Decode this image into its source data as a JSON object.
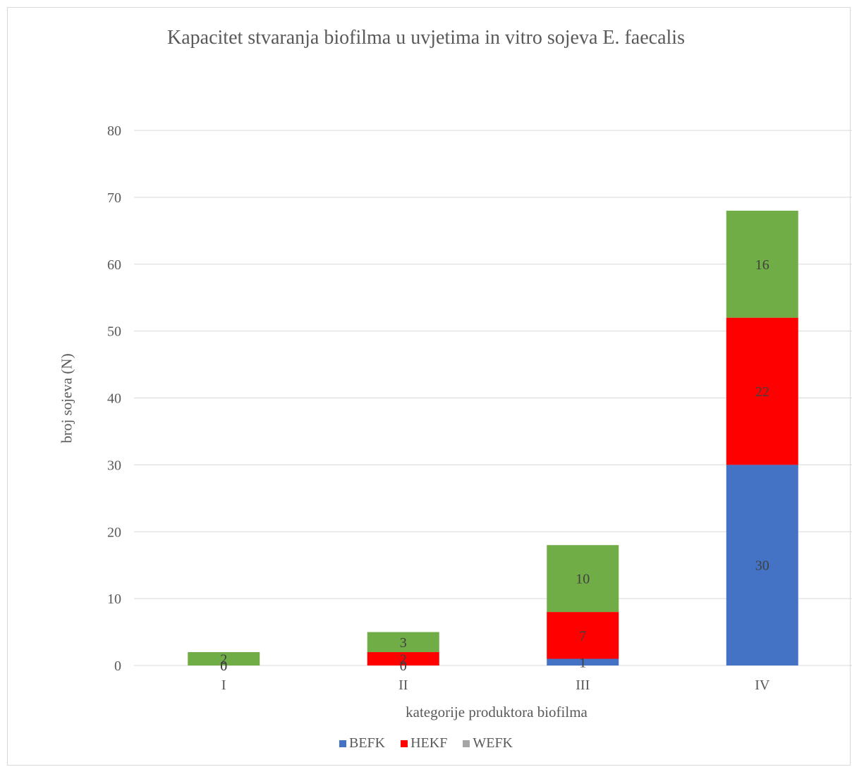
{
  "chart_data": {
    "type": "bar",
    "stacked": true,
    "title": "Kapacitet stvaranja biofilma u uvjetima in vitro sojeva E. faecalis",
    "xlabel": "kategorije produktora biofilma",
    "ylabel": "broj sojeva (N)",
    "categories": [
      "I",
      "II",
      "III",
      "IV"
    ],
    "ylim": [
      0,
      80
    ],
    "yticks": [
      0,
      10,
      20,
      30,
      40,
      50,
      60,
      70,
      80
    ],
    "grid": true,
    "legend_position": "bottom",
    "series": [
      {
        "name": "BEFK",
        "color": "#4472c4",
        "values": [
          0,
          0,
          1,
          30
        ],
        "labels": [
          "0",
          "0",
          "1",
          "30"
        ]
      },
      {
        "name": "HEKF",
        "color": "#ff0000",
        "values": [
          0,
          2,
          7,
          22
        ],
        "labels": [
          "0",
          "2",
          "7",
          "22"
        ]
      },
      {
        "name": "WEFK",
        "color": "#70ad47",
        "values": [
          2,
          3,
          10,
          16
        ],
        "labels": [
          "2",
          "3",
          "10",
          "16"
        ]
      }
    ]
  }
}
